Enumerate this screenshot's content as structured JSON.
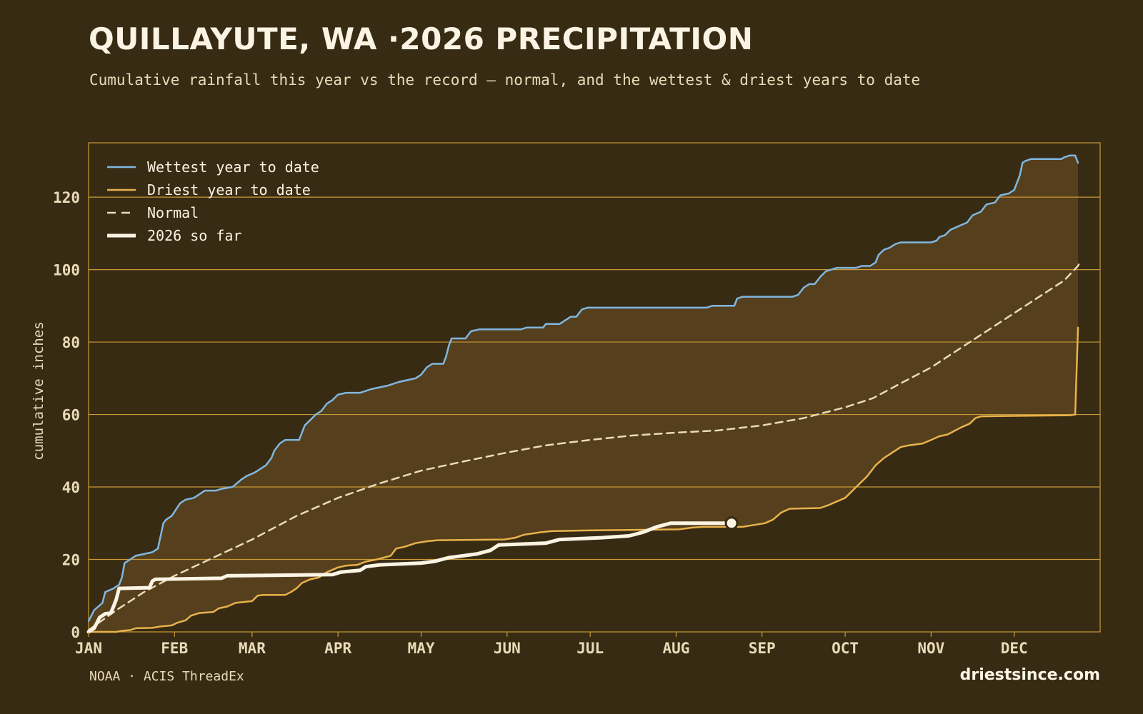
{
  "header": {
    "title": "QUILLAYUTE, WA ·2026 PRECIPITATION",
    "subtitle": "Cumulative rainfall this year vs the record — normal, and the wettest & driest years to date"
  },
  "footer": {
    "source": "NOAA · ACIS ThreadEx",
    "brand": "driestsince.com"
  },
  "colors": {
    "background": "#382b14",
    "band_fill": "#553f1d",
    "grid": "#c99a36",
    "wettest": "#7fb7e0",
    "driest": "#e7b24a",
    "normal": "#eadbb8",
    "current": "#fbf4e4"
  },
  "chart_data": {
    "type": "line",
    "ylabel": "cumulative inches",
    "ylim": [
      0,
      135
    ],
    "xlim": [
      0,
      365
    ],
    "yticks": [
      0,
      20,
      40,
      60,
      80,
      100,
      120
    ],
    "xticks": [
      {
        "label": "JAN",
        "day": 0
      },
      {
        "label": "FEB",
        "day": 31
      },
      {
        "label": "MAR",
        "day": 59
      },
      {
        "label": "APR",
        "day": 90
      },
      {
        "label": "MAY",
        "day": 120
      },
      {
        "label": "JUN",
        "day": 151
      },
      {
        "label": "JUL",
        "day": 181
      },
      {
        "label": "AUG",
        "day": 212
      },
      {
        "label": "SEP",
        "day": 243
      },
      {
        "label": "OCT",
        "day": 273
      },
      {
        "label": "NOV",
        "day": 304
      },
      {
        "label": "DEC",
        "day": 334
      }
    ],
    "grid": true,
    "legend_position": "top-left",
    "series": [
      {
        "name": "Wettest year to date",
        "style": "solid",
        "color": "#7fb7e0",
        "points": [
          [
            0,
            3
          ],
          [
            2,
            6
          ],
          [
            5,
            8
          ],
          [
            6,
            11
          ],
          [
            9,
            12
          ],
          [
            11,
            13
          ],
          [
            12,
            15
          ],
          [
            13,
            19
          ],
          [
            15,
            20
          ],
          [
            17,
            21
          ],
          [
            20,
            21.5
          ],
          [
            23,
            22
          ],
          [
            25,
            23
          ],
          [
            27,
            30
          ],
          [
            28,
            31
          ],
          [
            30,
            32
          ],
          [
            33,
            35.5
          ],
          [
            35,
            36.5
          ],
          [
            38,
            37
          ],
          [
            40,
            38
          ],
          [
            42,
            39
          ],
          [
            46,
            39
          ],
          [
            48,
            39.5
          ],
          [
            52,
            40
          ],
          [
            55,
            42
          ],
          [
            57,
            43
          ],
          [
            60,
            44
          ],
          [
            62,
            45
          ],
          [
            64,
            46
          ],
          [
            66,
            48
          ],
          [
            67,
            50
          ],
          [
            69,
            52
          ],
          [
            71,
            53
          ],
          [
            76,
            53
          ],
          [
            77,
            55
          ],
          [
            78,
            57
          ],
          [
            80,
            58.5
          ],
          [
            82,
            60
          ],
          [
            84,
            61
          ],
          [
            86,
            63
          ],
          [
            88,
            64
          ],
          [
            90,
            65.5
          ],
          [
            93,
            66
          ],
          [
            98,
            66
          ],
          [
            102,
            67
          ],
          [
            108,
            68
          ],
          [
            112,
            69
          ],
          [
            115,
            69.5
          ],
          [
            118,
            70
          ],
          [
            120,
            71
          ],
          [
            122,
            73
          ],
          [
            124,
            74
          ],
          [
            128,
            74
          ],
          [
            129,
            76
          ],
          [
            130,
            79
          ],
          [
            131,
            81
          ],
          [
            136,
            81
          ],
          [
            137,
            82
          ],
          [
            138,
            83
          ],
          [
            141,
            83.5
          ],
          [
            156,
            83.5
          ],
          [
            158,
            84
          ],
          [
            164,
            84
          ],
          [
            165,
            85
          ],
          [
            170,
            85
          ],
          [
            172,
            86
          ],
          [
            174,
            87
          ],
          [
            176,
            87
          ],
          [
            178,
            89
          ],
          [
            180,
            89.5
          ],
          [
            223,
            89.5
          ],
          [
            225,
            90
          ],
          [
            233,
            90
          ],
          [
            234,
            92
          ],
          [
            236,
            92.5
          ],
          [
            254,
            92.5
          ],
          [
            256,
            93
          ],
          [
            258,
            95
          ],
          [
            260,
            96
          ],
          [
            262,
            96
          ],
          [
            264,
            98
          ],
          [
            266,
            99.5
          ],
          [
            268,
            100
          ],
          [
            270,
            100.5
          ],
          [
            277,
            100.5
          ],
          [
            279,
            101
          ],
          [
            282,
            101
          ],
          [
            284,
            102
          ],
          [
            285,
            104
          ],
          [
            287,
            105.5
          ],
          [
            289,
            106
          ],
          [
            291,
            107
          ],
          [
            293,
            107.5
          ],
          [
            304,
            107.5
          ],
          [
            306,
            108
          ],
          [
            307,
            109
          ],
          [
            309,
            109.5
          ],
          [
            311,
            111
          ],
          [
            314,
            112
          ],
          [
            317,
            113
          ],
          [
            319,
            115
          ],
          [
            322,
            116
          ],
          [
            324,
            118
          ],
          [
            327,
            118.5
          ],
          [
            329,
            120.5
          ],
          [
            332,
            121
          ],
          [
            334,
            122
          ],
          [
            335,
            124
          ],
          [
            336,
            126
          ],
          [
            337,
            129.5
          ],
          [
            338,
            130
          ],
          [
            340,
            130.5
          ],
          [
            351,
            130.5
          ],
          [
            352,
            131
          ],
          [
            354,
            131.5
          ],
          [
            356,
            131.5
          ],
          [
            357,
            129.5
          ]
        ]
      },
      {
        "name": "Driest year to date",
        "style": "solid",
        "color": "#e7b24a",
        "points": [
          [
            0,
            0
          ],
          [
            10,
            0
          ],
          [
            12,
            0.3
          ],
          [
            15,
            0.5
          ],
          [
            17,
            1
          ],
          [
            23,
            1.1
          ],
          [
            26,
            1.5
          ],
          [
            30,
            1.8
          ],
          [
            32,
            2.5
          ],
          [
            35,
            3.2
          ],
          [
            37,
            4.5
          ],
          [
            40,
            5.2
          ],
          [
            45,
            5.5
          ],
          [
            47,
            6.5
          ],
          [
            50,
            7
          ],
          [
            53,
            8
          ],
          [
            59,
            8.5
          ],
          [
            61,
            10
          ],
          [
            63,
            10.2
          ],
          [
            71,
            10.2
          ],
          [
            73,
            11
          ],
          [
            75,
            12
          ],
          [
            77,
            13.5
          ],
          [
            80,
            14.5
          ],
          [
            83,
            15
          ],
          [
            86,
            16.5
          ],
          [
            90,
            17.8
          ],
          [
            93,
            18.3
          ],
          [
            97,
            18.5
          ],
          [
            100,
            19.4
          ],
          [
            104,
            20
          ],
          [
            109,
            21
          ],
          [
            111,
            23
          ],
          [
            114,
            23.5
          ],
          [
            118,
            24.5
          ],
          [
            122,
            25
          ],
          [
            126,
            25.3
          ],
          [
            150,
            25.5
          ],
          [
            154,
            26
          ],
          [
            157,
            26.8
          ],
          [
            163,
            27.5
          ],
          [
            167,
            27.8
          ],
          [
            180,
            28
          ],
          [
            203,
            28.2
          ],
          [
            213,
            28.3
          ],
          [
            218,
            28.8
          ],
          [
            222,
            29
          ],
          [
            236,
            29
          ],
          [
            240,
            29.5
          ],
          [
            244,
            30
          ],
          [
            247,
            31
          ],
          [
            250,
            33
          ],
          [
            253,
            34
          ],
          [
            264,
            34.2
          ],
          [
            267,
            35
          ],
          [
            270,
            36
          ],
          [
            273,
            37
          ],
          [
            277,
            40
          ],
          [
            281,
            43
          ],
          [
            284,
            46
          ],
          [
            287,
            48
          ],
          [
            289,
            49
          ],
          [
            291,
            50
          ],
          [
            293,
            51
          ],
          [
            296,
            51.5
          ],
          [
            301,
            52
          ],
          [
            304,
            53
          ],
          [
            307,
            54
          ],
          [
            310,
            54.5
          ],
          [
            312,
            55.3
          ],
          [
            315,
            56.5
          ],
          [
            318,
            57.5
          ],
          [
            320,
            59
          ],
          [
            322,
            59.5
          ],
          [
            354,
            59.8
          ],
          [
            356,
            60
          ],
          [
            357,
            84
          ]
        ]
      },
      {
        "name": "Normal",
        "style": "dashed",
        "color": "#eadbb8",
        "points": [
          [
            0,
            0.5
          ],
          [
            10,
            6
          ],
          [
            20,
            11
          ],
          [
            31,
            15.5
          ],
          [
            45,
            20.5
          ],
          [
            59,
            25.5
          ],
          [
            75,
            32
          ],
          [
            90,
            37
          ],
          [
            105,
            41
          ],
          [
            120,
            44.5
          ],
          [
            135,
            47
          ],
          [
            151,
            49.5
          ],
          [
            165,
            51.5
          ],
          [
            181,
            53
          ],
          [
            196,
            54.2
          ],
          [
            212,
            55
          ],
          [
            227,
            55.6
          ],
          [
            243,
            57
          ],
          [
            258,
            59
          ],
          [
            273,
            62
          ],
          [
            283,
            64.5
          ],
          [
            294,
            69
          ],
          [
            304,
            73
          ],
          [
            314,
            78
          ],
          [
            324,
            83
          ],
          [
            334,
            88
          ],
          [
            344,
            93
          ],
          [
            352,
            97
          ],
          [
            357,
            101
          ],
          [
            358,
            102.5
          ]
        ]
      },
      {
        "name": "2026 so far",
        "style": "bold",
        "color": "#fbf4e4",
        "points": [
          [
            0,
            0
          ],
          [
            2,
            1
          ],
          [
            4,
            4
          ],
          [
            6,
            5
          ],
          [
            8,
            5.2
          ],
          [
            9,
            7
          ],
          [
            10,
            9
          ],
          [
            11,
            12
          ],
          [
            22,
            12.2
          ],
          [
            23,
            14
          ],
          [
            24,
            14.5
          ],
          [
            48,
            14.8
          ],
          [
            50,
            15.5
          ],
          [
            88,
            15.8
          ],
          [
            91,
            16.5
          ],
          [
            98,
            17
          ],
          [
            100,
            18
          ],
          [
            105,
            18.5
          ],
          [
            120,
            19
          ],
          [
            125,
            19.5
          ],
          [
            130,
            20.5
          ],
          [
            140,
            21.5
          ],
          [
            145,
            22.5
          ],
          [
            148,
            24
          ],
          [
            165,
            24.5
          ],
          [
            170,
            25.5
          ],
          [
            185,
            26
          ],
          [
            195,
            26.5
          ],
          [
            200,
            27.5
          ],
          [
            205,
            29
          ],
          [
            210,
            30
          ],
          [
            232,
            30
          ]
        ]
      }
    ],
    "current_marker": {
      "day": 232,
      "value": 30
    }
  }
}
